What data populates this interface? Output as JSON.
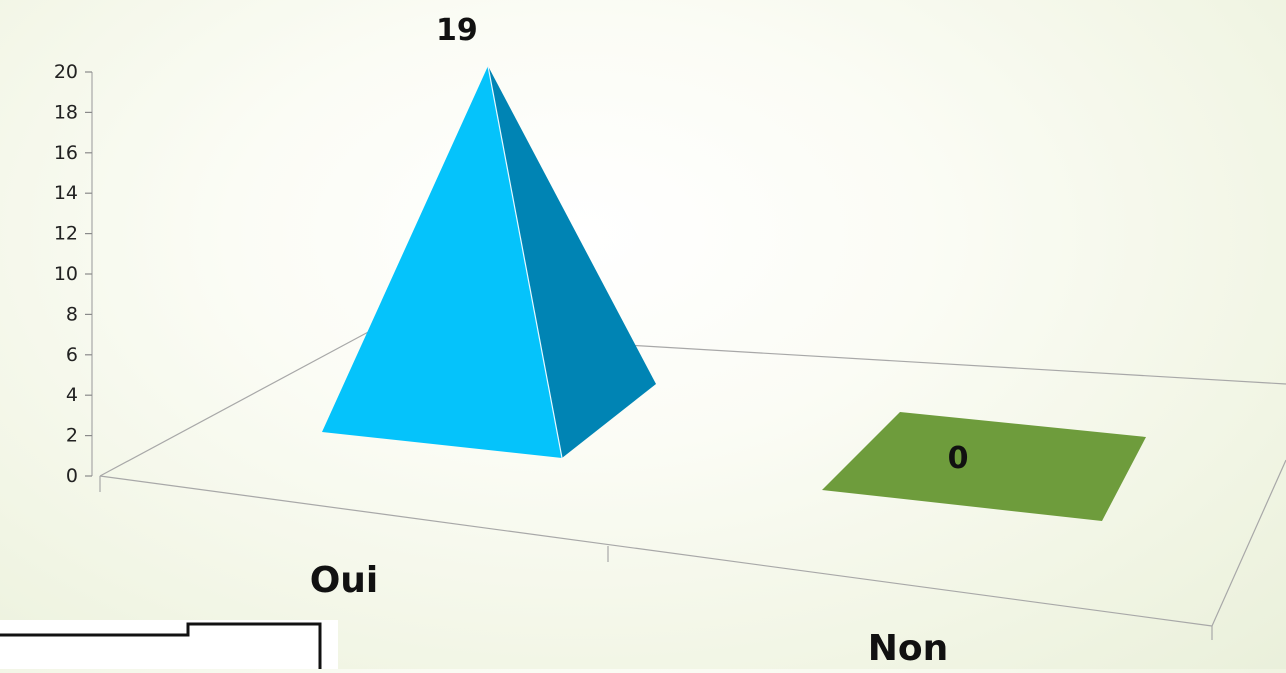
{
  "chart_data": {
    "type": "bar",
    "bar_shape": "3d-pyramid",
    "categories": [
      "Oui",
      "Non"
    ],
    "values": [
      19,
      0
    ],
    "ylim": [
      0,
      20
    ],
    "y_ticks": [
      "0",
      "2",
      "4",
      "6",
      "8",
      "10",
      "12",
      "14",
      "16",
      "18",
      "20"
    ],
    "data_labels": [
      "19",
      "0"
    ],
    "colors": {
      "Oui_front": "#05c3fb",
      "Oui_side": "#0084b4",
      "Non_base": "#6e9c3c"
    },
    "grid": false,
    "legend": "none"
  }
}
